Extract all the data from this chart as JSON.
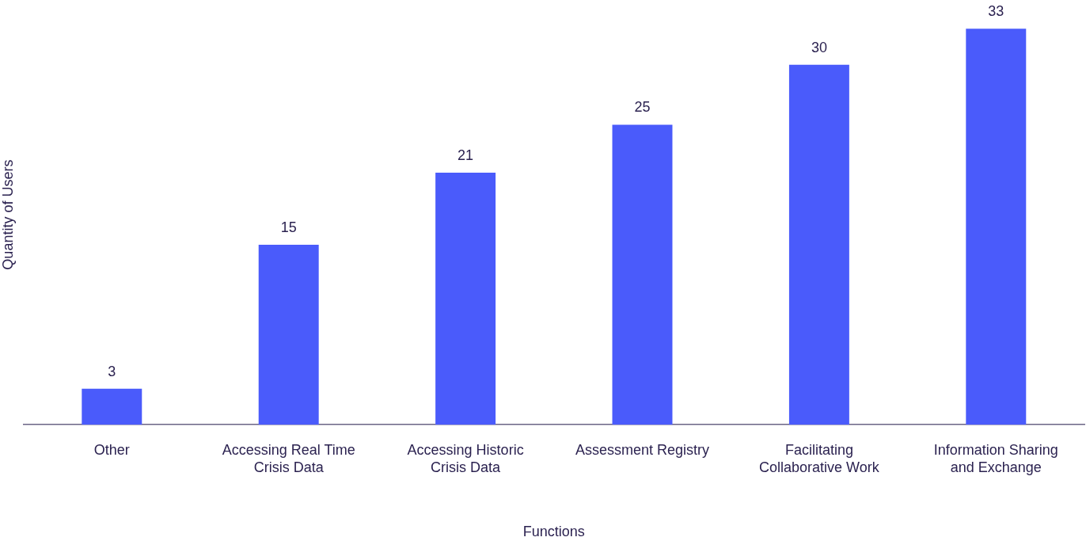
{
  "chart_data": {
    "type": "bar",
    "xlabel": "Functions",
    "ylabel": "Quantity of Users",
    "categories": [
      "Other",
      "Accessing Real Time Crisis Data",
      "Accessing Historic Crisis Data",
      "Assessment Registry",
      "Facilitating Collaborative Work",
      "Information Sharing and Exchange"
    ],
    "values": [
      3,
      15,
      21,
      25,
      30,
      33
    ],
    "color": "#4a5bfb",
    "tick_labels": "x",
    "data_labels": true,
    "grid": false,
    "legend": false
  }
}
